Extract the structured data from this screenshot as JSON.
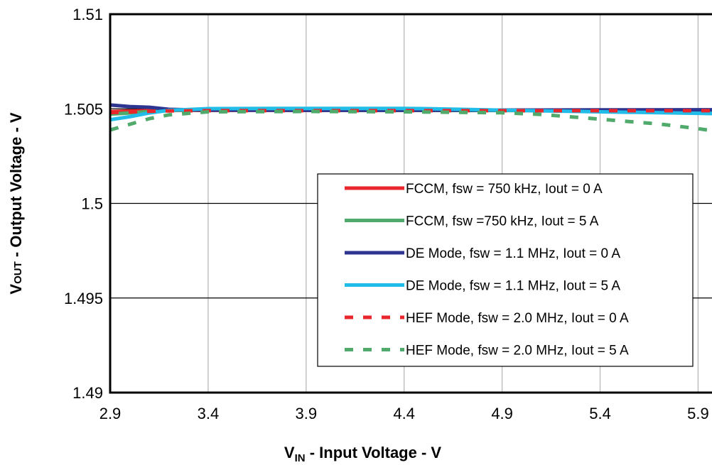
{
  "chart_data": {
    "type": "line",
    "xlabel": {
      "main": "V",
      "sub": "IN",
      "rest": " - Input Voltage - V"
    },
    "ylabel": {
      "main": "V",
      "sub": "OUT",
      "rest": " - Output Voltage - V"
    },
    "xlim": [
      2.9,
      6.0
    ],
    "ylim": [
      1.49,
      1.51
    ],
    "xticks": [
      2.9,
      3.4,
      3.9,
      4.4,
      4.9,
      5.4,
      5.9
    ],
    "xtick_labels": [
      "2.9",
      "3.4",
      "3.9",
      "4.4",
      "4.9",
      "5.4",
      "5.9"
    ],
    "yticks": [
      1.49,
      1.495,
      1.5,
      1.505,
      1.51
    ],
    "ytick_labels": [
      "1.49",
      "1.495",
      "1.5",
      "1.505",
      "1.51"
    ],
    "grid": {
      "vertical": true,
      "horizontal": true
    },
    "legend_position": "bottom-right",
    "series": [
      {
        "name": "FCCM, fsw = 750 kHz, Iout = 0 A",
        "color": "#e8262b",
        "dash": "solid",
        "x": [
          2.9,
          3.0,
          3.1,
          3.2,
          3.4,
          3.9,
          4.4,
          4.9,
          5.4,
          5.9,
          6.0
        ],
        "y": [
          1.50485,
          1.50488,
          1.5049,
          1.50491,
          1.50492,
          1.50492,
          1.50492,
          1.50492,
          1.50492,
          1.50491,
          1.50491
        ]
      },
      {
        "name": "FCCM, fsw =750 kHz, Iout = 5 A",
        "color": "#4faa6b",
        "dash": "solid",
        "x": [
          2.9,
          3.0,
          3.1,
          3.2,
          3.4,
          3.9,
          4.4,
          4.9,
          5.4,
          5.9,
          6.0
        ],
        "y": [
          1.50472,
          1.50478,
          1.50486,
          1.50492,
          1.50494,
          1.50493,
          1.50492,
          1.50491,
          1.50488,
          1.50482,
          1.5048
        ]
      },
      {
        "name": "DE Mode, fsw = 1.1 MHz, Iout = 0 A",
        "color": "#2e3590",
        "dash": "solid",
        "x": [
          2.9,
          3.0,
          3.1,
          3.2,
          3.4,
          3.9,
          4.4,
          4.9,
          5.4,
          5.9,
          6.0
        ],
        "y": [
          1.5052,
          1.50512,
          1.50508,
          1.50497,
          1.50493,
          1.50492,
          1.50492,
          1.50493,
          1.50494,
          1.50495,
          1.50495
        ]
      },
      {
        "name": "DE Mode, fsw = 1.1 MHz, Iout = 5 A",
        "color": "#21bde8",
        "dash": "solid",
        "x": [
          2.9,
          3.0,
          3.1,
          3.2,
          3.4,
          3.9,
          4.4,
          4.5,
          4.9,
          5.4,
          5.9,
          6.0
        ],
        "y": [
          1.50442,
          1.50458,
          1.50478,
          1.50492,
          1.50501,
          1.50502,
          1.50502,
          1.50501,
          1.50493,
          1.50484,
          1.50476,
          1.50474
        ]
      },
      {
        "name": "HEF Mode, fsw = 2.0 MHz, Iout = 0 A",
        "color": "#e8262b",
        "dash": "dashed",
        "x": [
          2.9,
          3.0,
          3.1,
          3.2,
          3.4,
          3.9,
          4.4,
          4.9,
          5.4,
          5.9,
          6.0
        ],
        "y": [
          1.5048,
          1.50483,
          1.50487,
          1.50489,
          1.5049,
          1.5049,
          1.5049,
          1.5049,
          1.5049,
          1.5049,
          1.5049
        ]
      },
      {
        "name": "HEF Mode, fsw = 2.0 MHz, Iout = 5 A",
        "color": "#4faa6b",
        "dash": "dashed",
        "x": [
          2.9,
          3.0,
          3.1,
          3.2,
          3.4,
          3.9,
          4.4,
          4.9,
          5.1,
          5.4,
          5.7,
          5.9,
          6.0
        ],
        "y": [
          1.50388,
          1.50418,
          1.50448,
          1.50468,
          1.50484,
          1.50486,
          1.50484,
          1.50479,
          1.5047,
          1.50445,
          1.5042,
          1.50395,
          1.5038
        ]
      }
    ]
  }
}
